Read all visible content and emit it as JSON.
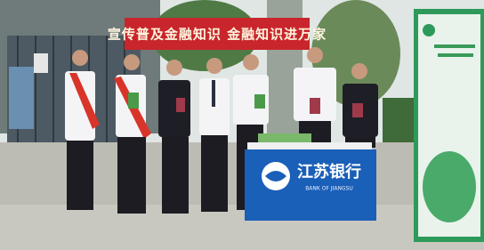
{
  "banner": {
    "text": "宣传普及金融知识 金融知识进万家"
  },
  "table_cloth": {
    "name": "江苏银行",
    "name_en": "BANK OF JIANGSU"
  }
}
